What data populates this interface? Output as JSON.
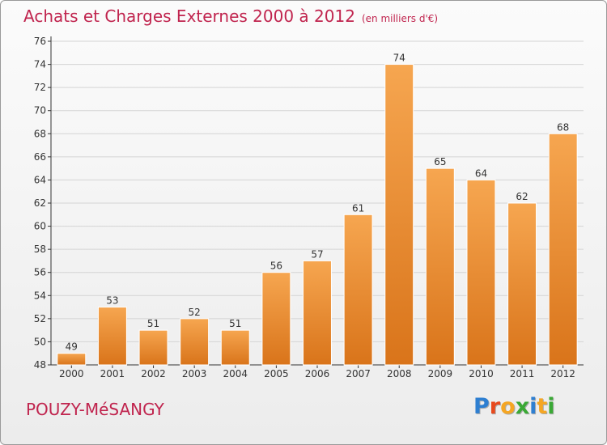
{
  "header": {
    "title": "Achats et Charges Externes 2000 à 2012",
    "subtitle": "(en milliers d'€)"
  },
  "footer": {
    "commune": "POUZY-MéSANGY",
    "brand_letters": [
      {
        "ch": "P",
        "color": "#2e7fd1"
      },
      {
        "ch": "r",
        "color": "#e8491d"
      },
      {
        "ch": "o",
        "color": "#f5a623"
      },
      {
        "ch": "x",
        "color": "#3aa935"
      },
      {
        "ch": "i",
        "color": "#2e7fd1"
      },
      {
        "ch": "t",
        "color": "#f5a623"
      },
      {
        "ch": "i",
        "color": "#3aa935"
      }
    ]
  },
  "colors": {
    "bar_light": "#f6a650",
    "bar_dark": "#d9741a",
    "grid": "#d4d4d4",
    "axis": "#333333",
    "title": "#c0244e"
  },
  "chart_data": {
    "type": "bar",
    "categories": [
      "2000",
      "2001",
      "2002",
      "2003",
      "2004",
      "2005",
      "2006",
      "2007",
      "2008",
      "2009",
      "2010",
      "2011",
      "2012"
    ],
    "values": [
      49,
      53,
      51,
      52,
      51,
      56,
      57,
      61,
      74,
      65,
      64,
      62,
      68
    ],
    "title": "Achats et Charges Externes 2000 à 2012",
    "subtitle": "(en milliers d'€)",
    "xlabel": "",
    "ylabel": "",
    "ylim": [
      48,
      76
    ],
    "yticks": [
      48,
      50,
      52,
      54,
      56,
      58,
      60,
      62,
      64,
      66,
      68,
      70,
      72,
      74,
      76
    ],
    "grid": true,
    "data_labels": true
  }
}
